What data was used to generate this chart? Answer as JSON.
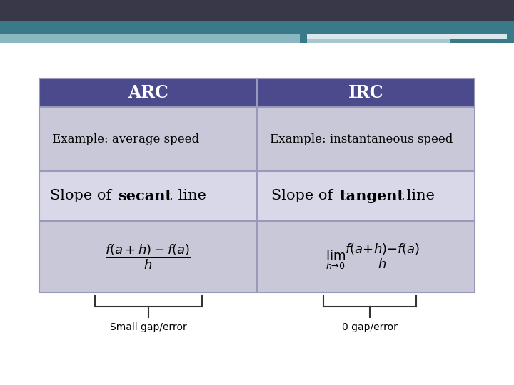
{
  "header_color": "#4a4a8c",
  "header_text_color": "#ffffff",
  "row1_bg": "#c8c8d8",
  "row2_bg": "#d8d8e8",
  "row3_bg": "#c8c8d8",
  "border_color": "#9999bb",
  "col1_header": "ARC",
  "col2_header": "IRC",
  "col1_row1": "Example: average speed",
  "col2_row1": "Example: instantaneous speed",
  "col1_annotation": "Small gap/error",
  "col2_annotation": "0 gap/error",
  "top_dark_color": "#383848",
  "top_teal_color": "#3a7a88",
  "top_light_color": "#8ab8c0",
  "top_white_color": "#d8e8ec",
  "fig_bg": "#ffffff"
}
